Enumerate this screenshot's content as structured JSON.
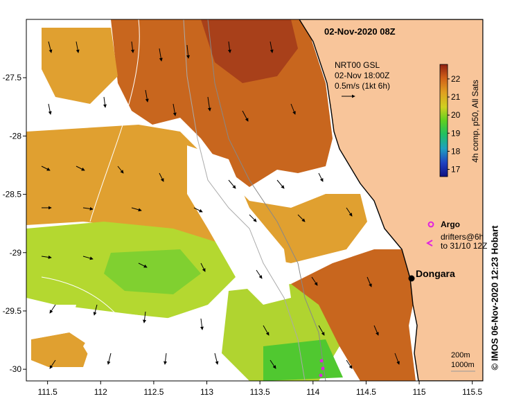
{
  "map": {
    "title": "02-Nov-2020 08Z",
    "current_info": {
      "line1": "NRT00 GSL",
      "line2": "02-Nov 18:00Z",
      "line3": "0.5m/s (1kt 6h)"
    },
    "colorbar": {
      "label": "4h comp, p50, All Sats",
      "ticks": [
        "17",
        "18",
        "19",
        "20",
        "21",
        "22"
      ],
      "range": [
        16.6,
        22.8
      ]
    },
    "legend": {
      "argo": "Argo",
      "drifters_line1": "drifters@6h",
      "drifters_line2": "to 31/10 12Z"
    },
    "place": "Dongara",
    "scale": {
      "line1": "200m",
      "line2": "1000m"
    },
    "copyright": "©  IMOS 06-Nov-2020 12:23 Hobart",
    "x_axis": {
      "ticks": [
        "111.5",
        "112",
        "112.5",
        "113",
        "113.5",
        "114",
        "114.5",
        "115",
        "115.5"
      ],
      "range": [
        111.3,
        115.6
      ]
    },
    "y_axis": {
      "ticks": [
        "-27.5",
        "-28",
        "-28.5",
        "-29",
        "-29.5",
        "-30"
      ],
      "range": [
        -30.1,
        -27.0
      ]
    },
    "colors": {
      "land": "#f8c59a",
      "warm": "#c8641e",
      "mid": "#e0a030",
      "cool": "#90d830",
      "coldest": "#30c030",
      "argo": "#e020e0"
    }
  }
}
